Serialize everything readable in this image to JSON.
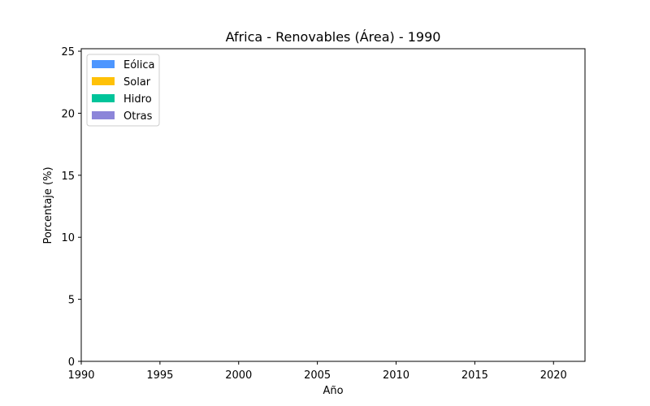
{
  "chart_data": {
    "type": "area",
    "title": "Africa - Renovables (Área) - 1990",
    "xlabel": "Año",
    "ylabel": "Porcentaje (%)",
    "xlim": [
      1990,
      2022
    ],
    "ylim": [
      0,
      25.2
    ],
    "xticks": [
      1990,
      1995,
      2000,
      2005,
      2010,
      2015,
      2020
    ],
    "yticks": [
      0,
      5,
      10,
      15,
      20,
      25
    ],
    "grid": false,
    "legend_position": "upper-left",
    "x": [],
    "series": [
      {
        "name": "Eólica",
        "color": "#4d96ff",
        "values": []
      },
      {
        "name": "Solar",
        "color": "#ffc107",
        "values": []
      },
      {
        "name": "Hidro",
        "color": "#00c49a",
        "values": []
      },
      {
        "name": "Otras",
        "color": "#8c85d9",
        "values": []
      }
    ]
  }
}
